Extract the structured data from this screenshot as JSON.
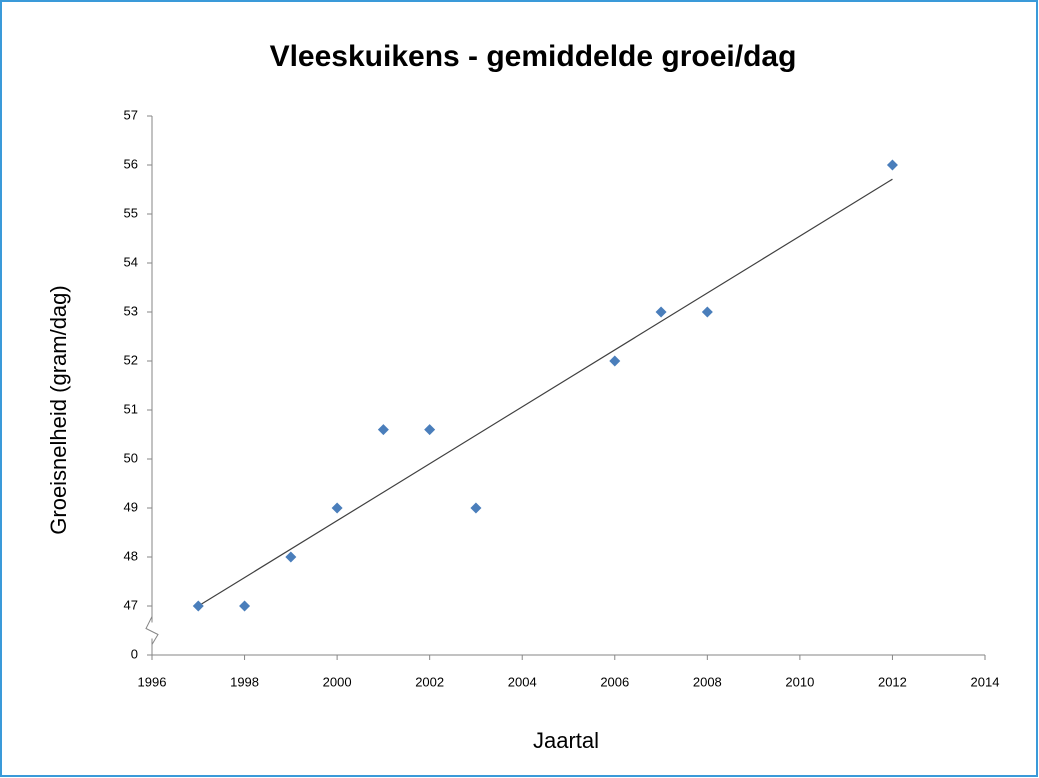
{
  "chart_data": {
    "type": "scatter",
    "title": "Vleeskuikens - gemiddelde groei/dag",
    "x_label": "Jaartal",
    "y_label": "Groeisnelheid (gram/dag)",
    "series": [
      {
        "name": "Groeisnelheid",
        "color": "#4a7ebb",
        "x": [
          1997,
          1998,
          1999,
          2000,
          2001,
          2002,
          2003,
          2006,
          2007,
          2008,
          2012
        ],
        "values": [
          47,
          47,
          48,
          49,
          50.6,
          50.6,
          49,
          52,
          53,
          53,
          56
        ]
      }
    ],
    "trendline": true,
    "trendline_color": "#404040",
    "xlim": [
      1996,
      2014
    ],
    "xticks": [
      1996,
      1998,
      2000,
      2002,
      2004,
      2006,
      2008,
      2010,
      2012,
      2014
    ],
    "ylim": [
      0,
      57
    ],
    "yticks": [
      0,
      47,
      48,
      49,
      50,
      51,
      52,
      53,
      54,
      55,
      56,
      57
    ],
    "axis_break": true,
    "grid": false
  }
}
